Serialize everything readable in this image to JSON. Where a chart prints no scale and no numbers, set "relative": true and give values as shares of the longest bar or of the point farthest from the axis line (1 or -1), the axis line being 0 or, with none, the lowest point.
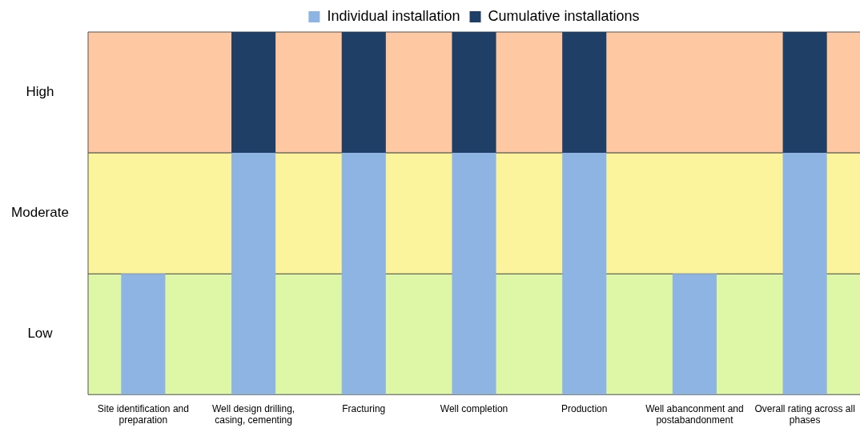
{
  "chart_data": {
    "type": "bar",
    "stacked": true,
    "relative": true,
    "legend": "top",
    "categories": [
      "Site identification and preparation",
      "Well design drilling, casing, cementing",
      "Fracturing",
      "Well completion",
      "Production",
      "Well abanconment and postabandonment",
      "Overall rating across all phases"
    ],
    "series": [
      {
        "name": "Individual installation",
        "color": "#8db4e2",
        "values": [
          0.333,
          0.667,
          0.667,
          0.667,
          0.667,
          0.333,
          0.667
        ]
      },
      {
        "name": "Cumulative installations",
        "color": "#1f3f66",
        "values": [
          0,
          0.333,
          0.333,
          0.333,
          0.333,
          0,
          0.333
        ]
      }
    ],
    "bands": [
      {
        "axis": "y",
        "from": 0,
        "to": 0.333,
        "label": "Low",
        "color": "#def7a6"
      },
      {
        "axis": "y",
        "from": 0.333,
        "to": 0.667,
        "label": "Moderate",
        "color": "#fbf49c"
      },
      {
        "axis": "y",
        "from": 0.667,
        "to": 1,
        "label": "High",
        "color": "#fdc8a2"
      }
    ]
  }
}
